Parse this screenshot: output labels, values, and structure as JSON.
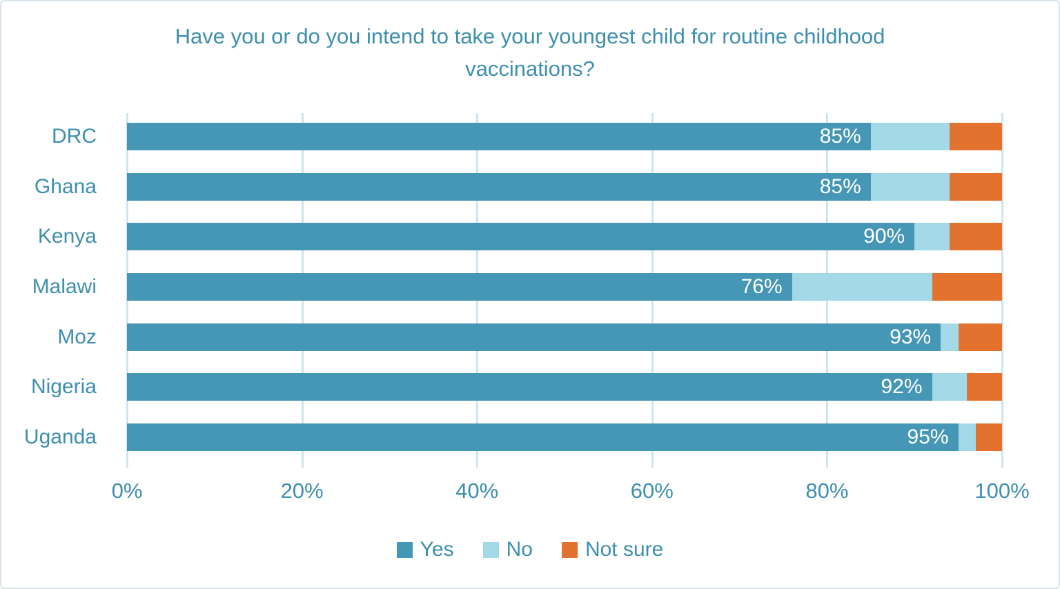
{
  "title": "Have you or do you intend to take your youngest child for routine childhood vaccinations?",
  "chart_data": {
    "type": "bar",
    "orientation": "horizontal",
    "stacked": true,
    "title": "Have you or do you intend to take your youngest child for routine childhood vaccinations?",
    "categories": [
      "DRC",
      "Ghana",
      "Kenya",
      "Malawi",
      "Moz",
      "Nigeria",
      "Uganda"
    ],
    "series": [
      {
        "name": "Yes",
        "color": "#4696b5",
        "values": [
          85,
          85,
          90,
          76,
          93,
          92,
          95
        ]
      },
      {
        "name": "No",
        "color": "#a3d8e6",
        "values": [
          9,
          9,
          4,
          16,
          2,
          4,
          2
        ]
      },
      {
        "name": "Not sure",
        "color": "#e2722d",
        "values": [
          6,
          6,
          6,
          8,
          5,
          4,
          3
        ]
      }
    ],
    "data_labels": {
      "series": "Yes",
      "values": [
        "85%",
        "85%",
        "90%",
        "76%",
        "93%",
        "92%",
        "95%"
      ],
      "color": "#ffffff"
    },
    "x_axis": {
      "min": 0,
      "max": 100,
      "ticks": [
        "0%",
        "20%",
        "40%",
        "60%",
        "80%",
        "100%"
      ],
      "tick_positions": [
        0,
        20,
        40,
        60,
        80,
        100
      ],
      "grid": true,
      "grid_color": "#cfe4ed"
    },
    "legend": {
      "position": "bottom",
      "items": [
        {
          "label": "Yes",
          "color": "#4696b5"
        },
        {
          "label": "No",
          "color": "#a3d8e6"
        },
        {
          "label": "Not sure",
          "color": "#e2722d"
        }
      ]
    },
    "text_color": "#3e8fae",
    "ylim": [
      0,
      100
    ]
  }
}
